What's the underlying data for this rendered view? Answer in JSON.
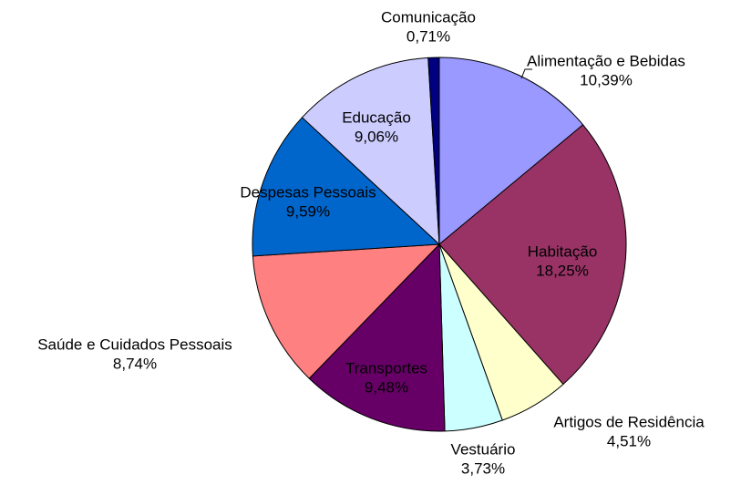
{
  "chart_data": {
    "type": "pie",
    "categories": [
      "Alimentação e Bebidas",
      "Habitação",
      "Artigos de Residência",
      "Vestuário",
      "Transportes",
      "Saúde e Cuidados Pessoais",
      "Despesas Pessoais",
      "Educação",
      "Comunicação"
    ],
    "values": [
      10.39,
      18.25,
      4.51,
      3.73,
      9.48,
      8.74,
      9.59,
      9.06,
      0.71
    ],
    "value_labels": [
      "10,39%",
      "18,25%",
      "4,51%",
      "3,73%",
      "9,48%",
      "8,74%",
      "9,59%",
      "9,06%",
      "0,71%"
    ],
    "colors": [
      "#9999ff",
      "#993366",
      "#ffffcc",
      "#ccffff",
      "#660066",
      "#ff8080",
      "#0066cc",
      "#ccccff",
      "#000080"
    ]
  }
}
